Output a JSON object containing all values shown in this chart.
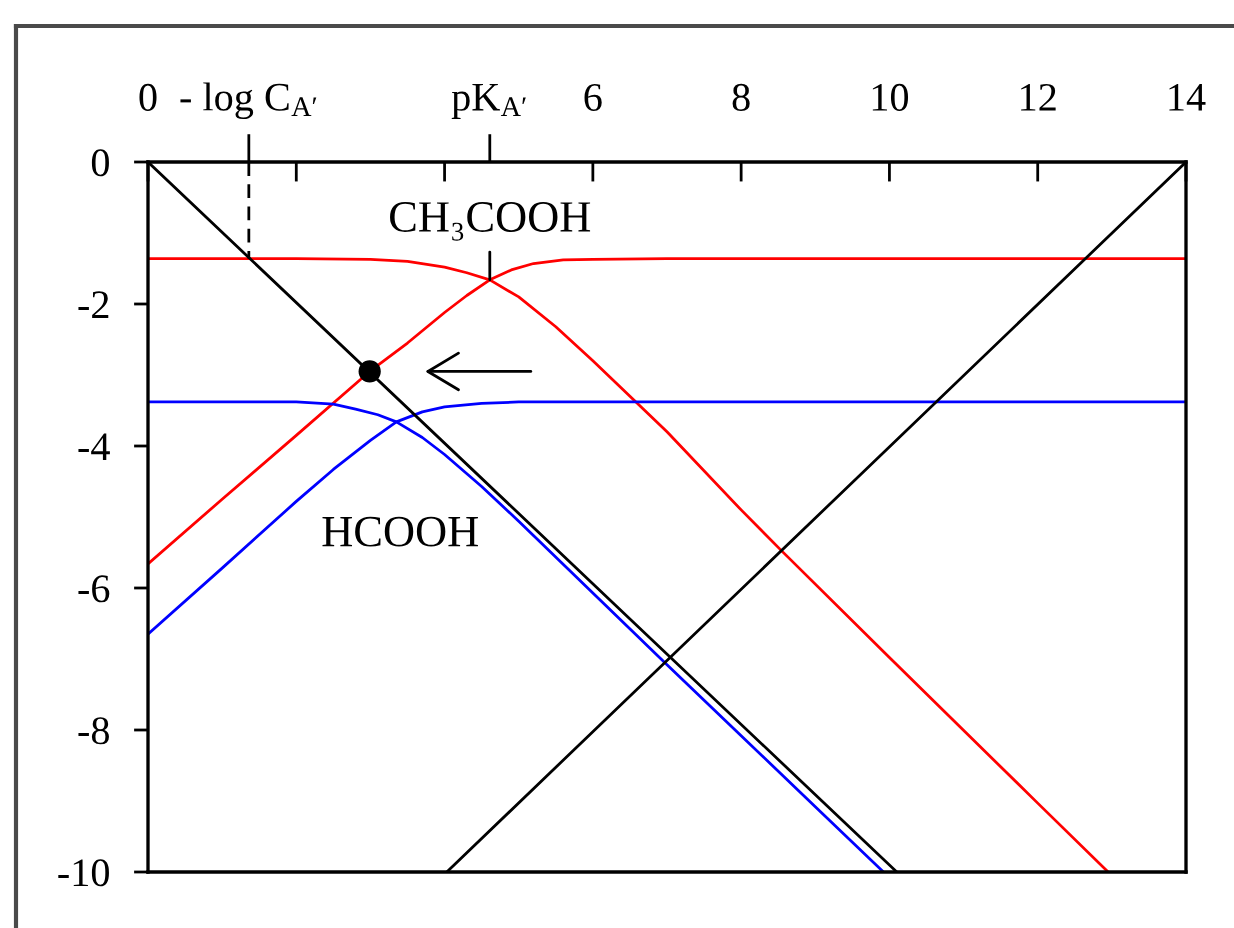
{
  "chart_data": {
    "type": "line",
    "xlim": [
      0,
      14
    ],
    "ylim": [
      -10,
      0
    ],
    "xticks": [
      0,
      {
        "value": 1.36,
        "label": "- log C$_{A′}$"
      },
      {
        "value": 2,
        "label": null
      },
      {
        "value": 4,
        "label": null
      },
      {
        "value": 4.61,
        "label": "pK$_{A′}$"
      },
      6,
      8,
      10,
      12,
      14
    ],
    "yticks": [
      0,
      -2,
      -4,
      -6,
      -8,
      -10
    ],
    "series": [
      {
        "color": "#ff0000",
        "x": [
          0,
          1,
          2,
          2.99,
          3.5,
          4,
          4.3,
          4.61,
          4.9,
          5.2,
          5.6,
          6,
          7,
          8,
          14
        ],
        "values": [
          -5.66,
          -4.75,
          -3.85,
          -2.95,
          -2.55,
          -2.12,
          -1.88,
          -1.66,
          -1.52,
          -1.43,
          -1.38,
          -1.37,
          -1.36,
          -1.36,
          -1.36
        ]
      },
      {
        "color": "#ff0000",
        "x": [
          0,
          2,
          3,
          3.5,
          4,
          4.3,
          4.61,
          5,
          5.5,
          6,
          6.5,
          7,
          8,
          8.54,
          10,
          12,
          12.95
        ],
        "values": [
          -1.36,
          -1.36,
          -1.37,
          -1.4,
          -1.48,
          -1.56,
          -1.66,
          -1.9,
          -2.32,
          -2.8,
          -3.3,
          -3.8,
          -4.9,
          -5.47,
          -6.98,
          -9.03,
          -10
        ]
      },
      {
        "color": "#0000ff",
        "x": [
          0,
          2,
          2.5,
          2.8,
          3.1,
          3.35,
          3.7,
          4,
          4.5,
          5,
          6,
          7,
          8,
          9,
          9.92
        ],
        "values": [
          -3.38,
          -3.38,
          -3.41,
          -3.48,
          -3.56,
          -3.66,
          -3.88,
          -4.12,
          -4.57,
          -5.06,
          -6.07,
          -7.08,
          -8.08,
          -9.08,
          -10
        ]
      },
      {
        "color": "#0000ff",
        "x": [
          0,
          1,
          2,
          2.5,
          3,
          3.35,
          3.7,
          4,
          4.5,
          5,
          6,
          14
        ],
        "values": [
          -6.65,
          -5.72,
          -4.78,
          -4.33,
          -3.92,
          -3.66,
          -3.52,
          -3.45,
          -3.4,
          -3.38,
          -3.38,
          -3.38
        ]
      },
      {
        "color": "#000000",
        "x": [
          0,
          10.1
        ],
        "values": [
          0,
          -10
        ]
      },
      {
        "color": "#000000",
        "x": [
          4.03,
          14
        ],
        "values": [
          -10,
          0
        ]
      },
      {
        "color": "#000000",
        "x": [
          1.36,
          1.36
        ],
        "values": [
          0,
          -1.36
        ],
        "line_style": "dashed"
      },
      {
        "type": "scatter",
        "color": "#000000",
        "marker": "circle",
        "x": [
          2.99
        ],
        "values": [
          -2.95
        ]
      }
    ],
    "annotations": [
      {
        "text": "CH₃COOH",
        "x": 4.61,
        "y": -1.66
      },
      "HCOOH"
    ]
  }
}
